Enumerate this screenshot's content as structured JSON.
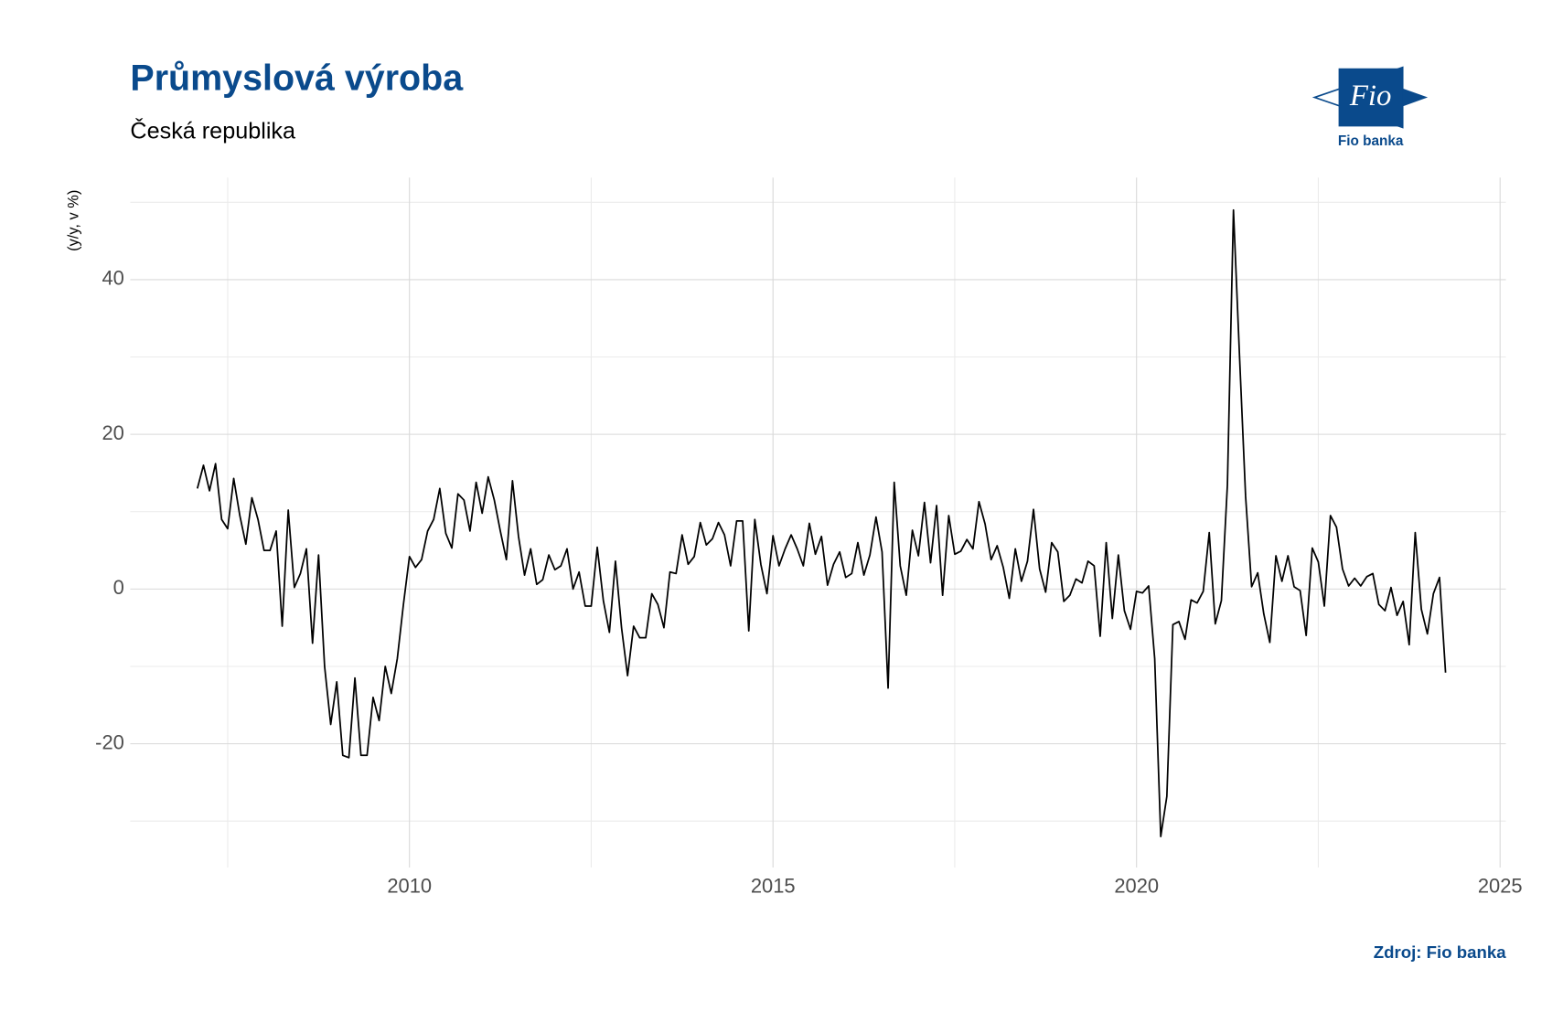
{
  "chart_data": {
    "type": "line",
    "title": "Průmyslová výroba",
    "subtitle": "Česká republika",
    "y_label": "(y/y, v %)",
    "source": "Zdroj: Fio banka",
    "logo": {
      "mark": "Fio",
      "name": "Fio banka"
    },
    "x": [
      2007.083,
      2007.167,
      2007.25,
      2007.333,
      2007.417,
      2007.5,
      2007.583,
      2007.667,
      2007.75,
      2007.833,
      2007.917,
      2008,
      2008.083,
      2008.167,
      2008.25,
      2008.333,
      2008.417,
      2008.5,
      2008.583,
      2008.667,
      2008.75,
      2008.833,
      2008.917,
      2009,
      2009.083,
      2009.167,
      2009.25,
      2009.333,
      2009.417,
      2009.5,
      2009.583,
      2009.667,
      2009.75,
      2009.833,
      2009.917,
      2010,
      2010.083,
      2010.167,
      2010.25,
      2010.333,
      2010.417,
      2010.5,
      2010.583,
      2010.667,
      2010.75,
      2010.833,
      2010.917,
      2011,
      2011.083,
      2011.167,
      2011.25,
      2011.333,
      2011.417,
      2011.5,
      2011.583,
      2011.667,
      2011.75,
      2011.833,
      2011.917,
      2012,
      2012.083,
      2012.167,
      2012.25,
      2012.333,
      2012.417,
      2012.5,
      2012.583,
      2012.667,
      2012.75,
      2012.833,
      2012.917,
      2013,
      2013.083,
      2013.167,
      2013.25,
      2013.333,
      2013.417,
      2013.5,
      2013.583,
      2013.667,
      2013.75,
      2013.833,
      2013.917,
      2014,
      2014.083,
      2014.167,
      2014.25,
      2014.333,
      2014.417,
      2014.5,
      2014.583,
      2014.667,
      2014.75,
      2014.833,
      2014.917,
      2015,
      2015.083,
      2015.167,
      2015.25,
      2015.333,
      2015.417,
      2015.5,
      2015.583,
      2015.667,
      2015.75,
      2015.833,
      2015.917,
      2016,
      2016.083,
      2016.167,
      2016.25,
      2016.333,
      2016.417,
      2016.5,
      2016.583,
      2016.667,
      2016.75,
      2016.833,
      2016.917,
      2017,
      2017.083,
      2017.167,
      2017.25,
      2017.333,
      2017.417,
      2017.5,
      2017.583,
      2017.667,
      2017.75,
      2017.833,
      2017.917,
      2018,
      2018.083,
      2018.167,
      2018.25,
      2018.333,
      2018.417,
      2018.5,
      2018.583,
      2018.667,
      2018.75,
      2018.833,
      2018.917,
      2019,
      2019.083,
      2019.167,
      2019.25,
      2019.333,
      2019.417,
      2019.5,
      2019.583,
      2019.667,
      2019.75,
      2019.833,
      2019.917,
      2020,
      2020.083,
      2020.167,
      2020.25,
      2020.333,
      2020.417,
      2020.5,
      2020.583,
      2020.667,
      2020.75,
      2020.833,
      2020.917,
      2021,
      2021.083,
      2021.167,
      2021.25,
      2021.333,
      2021.417,
      2021.5,
      2021.583,
      2021.667,
      2021.75,
      2021.833,
      2021.917,
      2022,
      2022.083,
      2022.167,
      2022.25,
      2022.333,
      2022.417,
      2022.5,
      2022.583,
      2022.667,
      2022.75,
      2022.833,
      2022.917,
      2023,
      2023.083,
      2023.167,
      2023.25,
      2023.333,
      2023.417,
      2023.5,
      2023.583,
      2023.667,
      2023.75,
      2023.833,
      2023.917,
      2024,
      2024.083,
      2024.167,
      2024.25
    ],
    "series": [
      {
        "color": "#000000",
        "values": [
          13,
          16,
          12.7,
          16.2,
          9,
          7.8,
          14.3,
          9.5,
          5.8,
          11.8,
          9,
          5,
          5,
          7.5,
          -4.8,
          10.2,
          0.2,
          2,
          5.2,
          -7,
          4.4,
          -10,
          -17.5,
          -12,
          -21.5,
          -21.8,
          -11.5,
          -21.5,
          -21.5,
          -14,
          -17,
          -10,
          -13.5,
          -9,
          -2,
          4.2,
          2.8,
          3.8,
          7.5,
          9,
          13,
          7.2,
          5.3,
          12.3,
          11.5,
          7.5,
          13.8,
          9.8,
          14.5,
          11.5,
          7.5,
          3.8,
          14,
          6.8,
          1.8,
          5.2,
          0.6,
          1.2,
          4.4,
          2.5,
          3,
          5.2,
          0,
          2.2,
          -2.2,
          -2.2,
          5.4,
          -1.5,
          -5.6,
          3.6,
          -5,
          -11.2,
          -4.8,
          -6.3,
          -6.3,
          -0.6,
          -2,
          -5,
          2.2,
          2,
          7,
          3.2,
          4.2,
          8.6,
          5.7,
          6.5,
          8.6,
          7,
          3,
          8.8,
          8.8,
          -5.4,
          9,
          3.2,
          -0.6,
          6.9,
          3,
          5.2,
          7,
          5.2,
          3,
          8.5,
          4.5,
          6.8,
          0.5,
          3.2,
          4.8,
          1.5,
          2,
          6,
          1.8,
          4.4,
          9.3,
          4.8,
          -12.8,
          13.8,
          3,
          -0.8,
          7.6,
          4.3,
          11.2,
          3.4,
          10.8,
          -0.8,
          9.5,
          4.5,
          4.9,
          6.4,
          5.2,
          11.3,
          8.4,
          3.8,
          5.6,
          2.8,
          -1.2,
          5.2,
          1,
          3.6,
          10.3,
          2.6,
          -0.4,
          6,
          4.8,
          -1.6,
          -0.8,
          1.3,
          0.8,
          3.6,
          3,
          -6.1,
          6,
          -3.8,
          4.4,
          -2.8,
          -5.2,
          -0.3,
          -0.5,
          0.4,
          -9,
          -32,
          -26.8,
          -4.6,
          -4.2,
          -6.5,
          -1.4,
          -1.8,
          -0.3,
          7.3,
          -4.5,
          -1.5,
          13.5,
          49,
          30,
          12,
          0.3,
          2.1,
          -3.2,
          -6.9,
          4.3,
          1,
          4.3,
          0.3,
          -0.2,
          -6,
          5.3,
          3.5,
          -2.2,
          9.5,
          8,
          2.6,
          0.4,
          1.4,
          0.4,
          1.6,
          2,
          -2,
          -2.8,
          0.2,
          -3.4,
          -1.6,
          -7.2,
          7.3,
          -2.6,
          -5.8,
          -0.6,
          1.5,
          -10.8
        ]
      }
    ],
    "xlim": [
      2006.16,
      2025.08
    ],
    "xticks": [
      2010,
      2015,
      2020,
      2025
    ],
    "ylim": [
      -36,
      53.2
    ],
    "yticks": [
      -20,
      0,
      20,
      40
    ],
    "grid": true,
    "minor_grid": true
  }
}
